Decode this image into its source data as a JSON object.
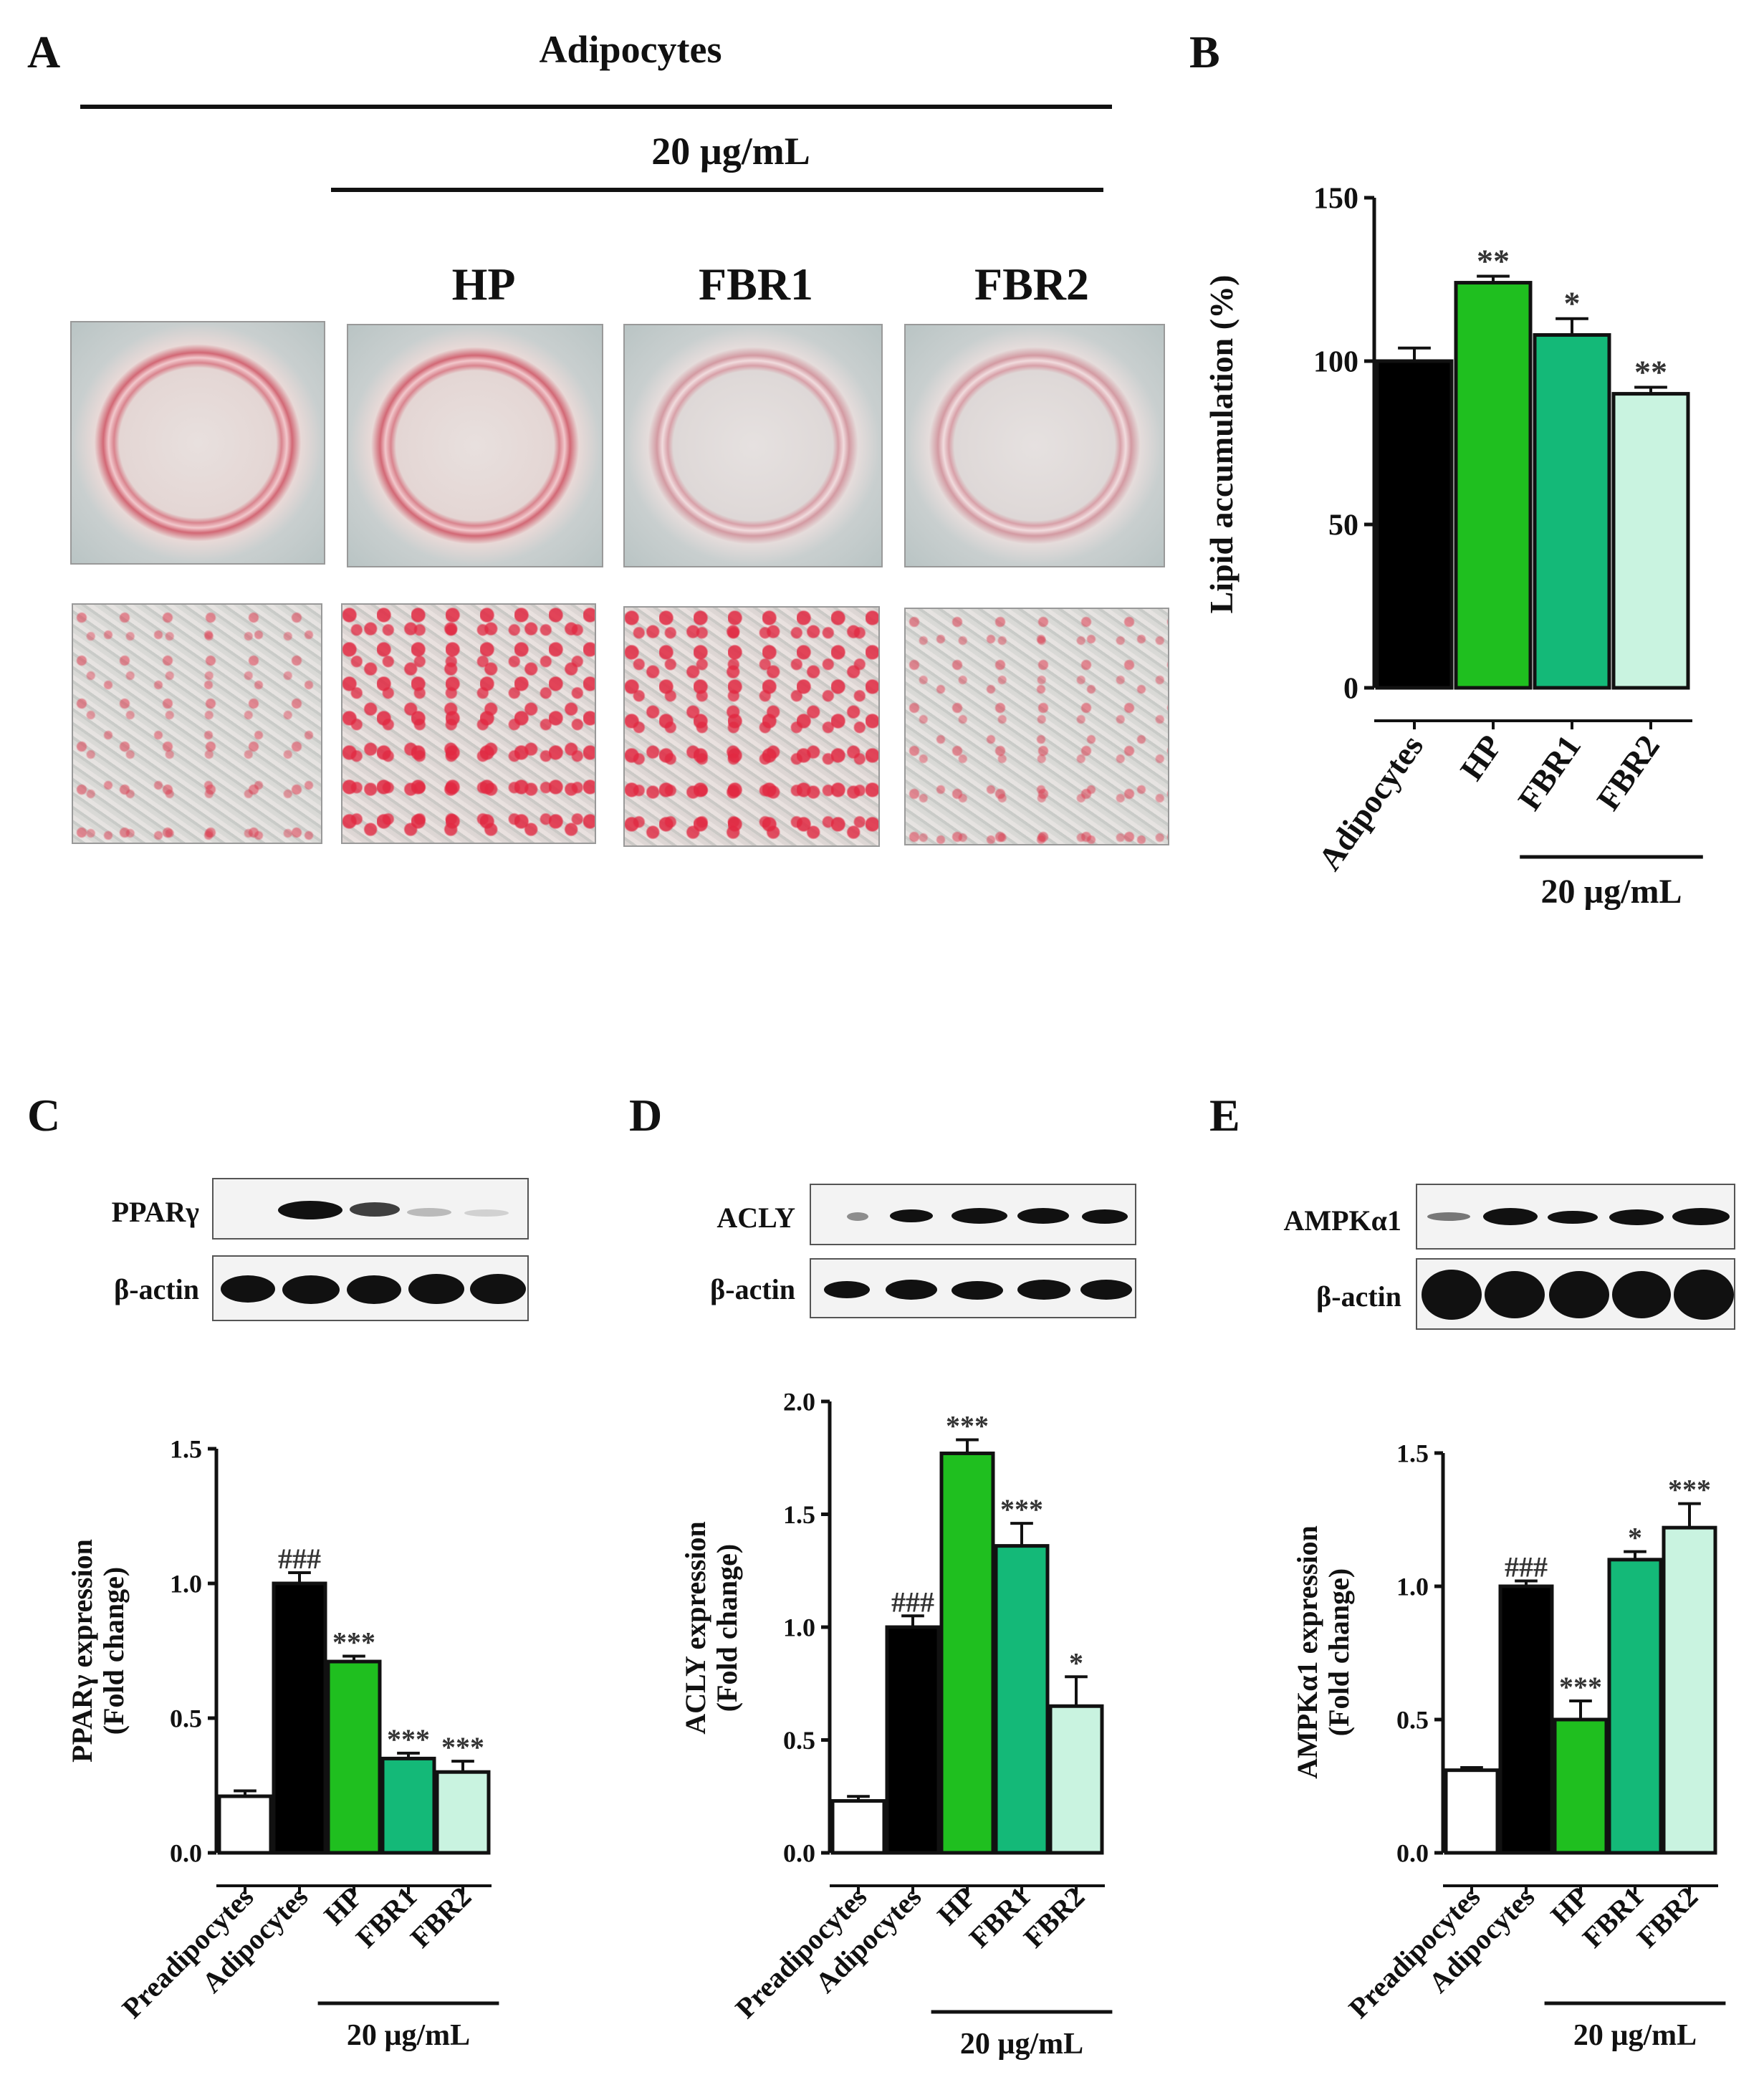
{
  "panels": {
    "a": {
      "letter": "A",
      "header": "Adipocytes",
      "dose": "20 µg/mL",
      "groups": [
        "HP",
        "FBR1",
        "FBR2"
      ]
    },
    "b": {
      "letter": "B"
    },
    "c": {
      "letter": "C",
      "blot_labels": [
        "PPARγ",
        "β-actin"
      ]
    },
    "d": {
      "letter": "D",
      "blot_labels": [
        "ACLY",
        "β-actin"
      ]
    },
    "e": {
      "letter": "E",
      "blot_labels": [
        "AMPKα1",
        "β-actin"
      ]
    }
  },
  "colors": {
    "preadipocytes": "#ffffff",
    "adipocytes": "#000000",
    "hp": "#1fbf1f",
    "fbr1": "#14b978",
    "fbr2": "#c9f3e0"
  },
  "chart_data": [
    {
      "id": "B",
      "type": "bar",
      "categories": [
        "Adipocytes",
        "HP",
        "FBR1",
        "FBR2"
      ],
      "values": [
        100,
        124,
        108,
        90
      ],
      "errors": [
        4,
        2,
        5,
        2
      ],
      "annotations": [
        "",
        "**",
        "*",
        "**"
      ],
      "ylabel": "Lipid accumulation (%)",
      "ylim": [
        0,
        150
      ],
      "yticks": [
        "0",
        "50",
        "100",
        "150"
      ],
      "group_label": "20 µg/mL"
    },
    {
      "id": "C",
      "type": "bar",
      "categories": [
        "Preadipocytes",
        "Adipocytes",
        "HP",
        "FBR1",
        "FBR2"
      ],
      "values": [
        0.21,
        1.0,
        0.71,
        0.35,
        0.3
      ],
      "errors": [
        0.02,
        0.04,
        0.02,
        0.02,
        0.04
      ],
      "annotations": [
        "",
        "###",
        "***",
        "***",
        "***"
      ],
      "ylabel": [
        "PPARγ expression",
        "(Fold change)"
      ],
      "ylim": [
        0,
        1.5
      ],
      "yticks": [
        "0.0",
        "0.5",
        "1.0",
        "1.5"
      ],
      "group_label": "20 µg/mL"
    },
    {
      "id": "D",
      "type": "bar",
      "categories": [
        "Preadipocytes",
        "Adipocytes",
        "HP",
        "FBR1",
        "FBR2"
      ],
      "values": [
        0.23,
        1.0,
        1.77,
        1.36,
        0.65
      ],
      "errors": [
        0.02,
        0.05,
        0.06,
        0.1,
        0.13
      ],
      "annotations": [
        "",
        "###",
        "***",
        "***",
        "*"
      ],
      "ylabel": [
        "ACLY expression",
        "(Fold change)"
      ],
      "ylim": [
        0,
        2.0
      ],
      "yticks": [
        "0.0",
        "0.5",
        "1.0",
        "1.5",
        "2.0"
      ],
      "group_label": "20 µg/mL"
    },
    {
      "id": "E",
      "type": "bar",
      "categories": [
        "Preadipocytes",
        "Adipocytes",
        "HP",
        "FBR1",
        "FBR2"
      ],
      "values": [
        0.31,
        1.0,
        0.5,
        1.1,
        1.22
      ],
      "errors": [
        0.01,
        0.02,
        0.07,
        0.03,
        0.09
      ],
      "annotations": [
        "",
        "###",
        "***",
        "*",
        "***"
      ],
      "ylabel": [
        "AMPKα1 expression",
        "(Fold change)"
      ],
      "ylim": [
        0,
        1.5
      ],
      "yticks": [
        "0.0",
        "0.5",
        "1.0",
        "1.5"
      ],
      "group_label": "20 µg/mL"
    }
  ]
}
